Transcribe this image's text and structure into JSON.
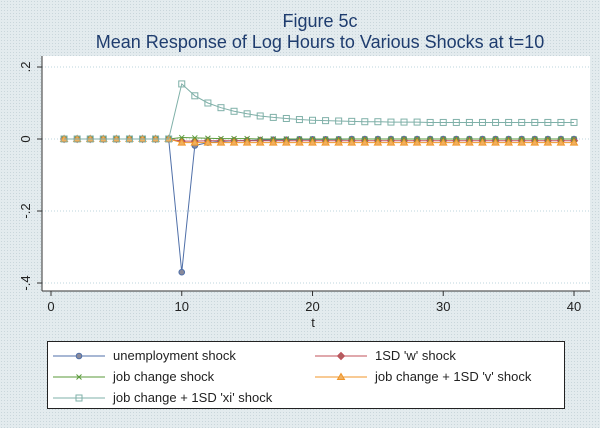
{
  "chart_data": {
    "type": "line",
    "title": "Figure 5c",
    "subtitle": "Mean Response of Log Hours to Various Shocks at t=10",
    "xlabel": "t",
    "ylabel": "",
    "xlim": [
      0,
      40
    ],
    "ylim": [
      -0.4,
      0.2
    ],
    "xticks": [
      0,
      10,
      20,
      30,
      40
    ],
    "yticks": [
      -0.4,
      -0.2,
      0,
      0.2
    ],
    "ytick_labels": [
      "-.4",
      "-.2",
      "0",
      ".2"
    ],
    "grid": true,
    "legend_position": "bottom",
    "x": [
      1,
      2,
      3,
      4,
      5,
      6,
      7,
      8,
      9,
      10,
      11,
      12,
      13,
      14,
      15,
      16,
      17,
      18,
      19,
      20,
      21,
      22,
      23,
      24,
      25,
      26,
      27,
      28,
      29,
      30,
      31,
      32,
      33,
      34,
      35,
      36,
      37,
      38,
      39,
      40
    ],
    "series": [
      {
        "name": "unemployment shock",
        "color": "#4f6fa8",
        "marker": "circle",
        "values": [
          0,
          0,
          0,
          0,
          0,
          0,
          0,
          0,
          0,
          -0.37,
          -0.018,
          -0.01,
          -0.007,
          -0.005,
          -0.004,
          -0.003,
          -0.002,
          -0.002,
          -0.001,
          -0.001,
          -0.001,
          -0.001,
          0,
          0,
          0,
          0,
          0,
          0,
          0,
          0,
          0,
          0,
          0,
          0,
          0,
          0,
          0,
          0,
          0,
          0
        ]
      },
      {
        "name": "1SD 'w' shock",
        "color": "#c0505a",
        "marker": "diamond",
        "values": [
          0,
          0,
          0,
          0,
          0,
          0,
          0,
          0,
          0,
          -0.006,
          -0.006,
          -0.005,
          -0.005,
          -0.005,
          -0.005,
          -0.005,
          -0.005,
          -0.005,
          -0.005,
          -0.005,
          -0.005,
          -0.005,
          -0.005,
          -0.005,
          -0.005,
          -0.005,
          -0.005,
          -0.005,
          -0.005,
          -0.005,
          -0.005,
          -0.005,
          -0.005,
          -0.005,
          -0.005,
          -0.005,
          -0.005,
          -0.005,
          -0.005,
          -0.005
        ]
      },
      {
        "name": "job change shock",
        "color": "#5a9a3a",
        "marker": "x",
        "values": [
          0,
          0,
          0,
          0,
          0,
          0,
          0,
          0,
          0,
          0.004,
          0.003,
          0.002,
          0.001,
          0.001,
          0.001,
          0,
          0,
          0,
          0,
          0,
          0,
          0,
          0,
          0,
          0,
          0,
          0,
          0,
          0,
          0,
          0,
          0,
          0,
          0,
          0,
          0,
          0,
          0,
          0,
          0
        ]
      },
      {
        "name": "job change + 1SD 'v' shock",
        "color": "#f0962a",
        "marker": "triangle",
        "values": [
          0,
          0,
          0,
          0,
          0,
          0,
          0,
          0,
          0,
          -0.01,
          -0.01,
          -0.01,
          -0.01,
          -0.01,
          -0.01,
          -0.01,
          -0.01,
          -0.01,
          -0.01,
          -0.01,
          -0.01,
          -0.01,
          -0.01,
          -0.01,
          -0.01,
          -0.01,
          -0.01,
          -0.01,
          -0.01,
          -0.01,
          -0.01,
          -0.01,
          -0.01,
          -0.01,
          -0.01,
          -0.01,
          -0.01,
          -0.01,
          -0.01,
          -0.01
        ]
      },
      {
        "name": "job change + 1SD 'xi' shock",
        "color": "#7fb0a8",
        "marker": "square",
        "values": [
          0,
          0,
          0,
          0,
          0,
          0,
          0,
          0,
          0,
          0.153,
          0.12,
          0.1,
          0.087,
          0.077,
          0.07,
          0.064,
          0.06,
          0.057,
          0.054,
          0.052,
          0.051,
          0.05,
          0.049,
          0.048,
          0.048,
          0.047,
          0.047,
          0.047,
          0.046,
          0.046,
          0.046,
          0.046,
          0.046,
          0.046,
          0.046,
          0.046,
          0.046,
          0.046,
          0.046,
          0.046
        ]
      }
    ]
  }
}
